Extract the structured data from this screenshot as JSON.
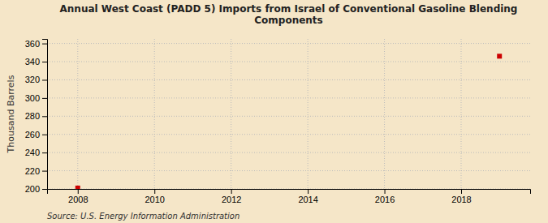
{
  "chart_data": {
    "type": "scatter",
    "title": "Annual West Coast (PADD 5) Imports from Israel of Conventional Gasoline Blending\nComponents",
    "ylabel": "Thousand Barrels",
    "source": "Source: U.S. Energy Information Administration",
    "x": [
      2008,
      2019
    ],
    "values": [
      201,
      346
    ],
    "color": "#cc0000",
    "marker": "square",
    "xlim": [
      2007.2,
      2019.8
    ],
    "ylim": [
      200,
      365
    ],
    "xticks": [
      2008,
      2010,
      2012,
      2014,
      2016,
      2018
    ],
    "yticks": [
      200,
      220,
      240,
      260,
      280,
      300,
      320,
      340,
      360
    ],
    "grid": true
  }
}
